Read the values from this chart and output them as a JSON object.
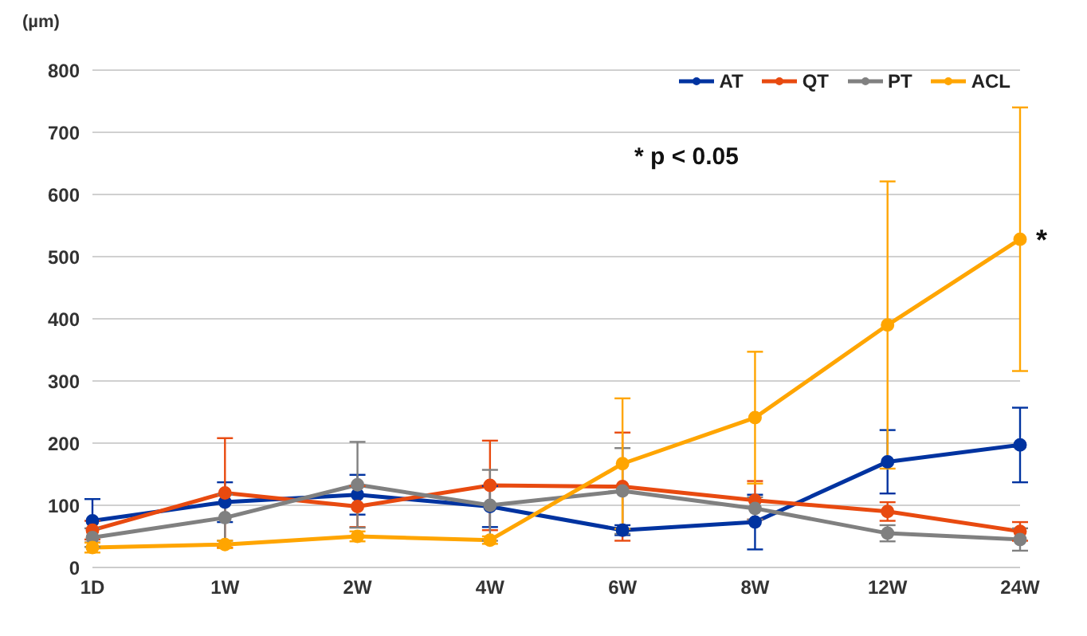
{
  "chart_data": {
    "type": "line",
    "ylabel": "(µm)",
    "categories": [
      "1D",
      "1W",
      "2W",
      "4W",
      "6W",
      "8W",
      "12W",
      "24W"
    ],
    "series": [
      {
        "name": "AT",
        "color": "#0033a0",
        "values": [
          75,
          105,
          117,
          98,
          60,
          73,
          170,
          197
        ],
        "errors": [
          35,
          32,
          32,
          33,
          8,
          44,
          51,
          60
        ]
      },
      {
        "name": "QT",
        "color": "#e84a10",
        "values": [
          60,
          120,
          98,
          132,
          130,
          108,
          90,
          58
        ],
        "errors": [
          15,
          88,
          33,
          72,
          87,
          31,
          15,
          15
        ]
      },
      {
        "name": "PT",
        "color": "#808080",
        "values": [
          48,
          80,
          133,
          100,
          123,
          95,
          55,
          45
        ],
        "errors": [
          15,
          37,
          69,
          57,
          69,
          18,
          13,
          18
        ]
      },
      {
        "name": "ACL",
        "color": "#ffa500",
        "values": [
          32,
          37,
          50,
          44,
          167,
          241,
          390,
          528
        ],
        "errors": [
          8,
          6,
          8,
          6,
          105,
          106,
          231,
          212
        ]
      }
    ],
    "ylim": [
      0,
      800
    ],
    "yticks": [
      0,
      100,
      200,
      300,
      400,
      500,
      600,
      700,
      800
    ],
    "grid": "y",
    "legend": "top right",
    "marker": "circle",
    "line_style": "solid",
    "annotations": [
      "* p < 0.05",
      {
        "text": "*",
        "x": "24W",
        "y": 528
      }
    ]
  }
}
